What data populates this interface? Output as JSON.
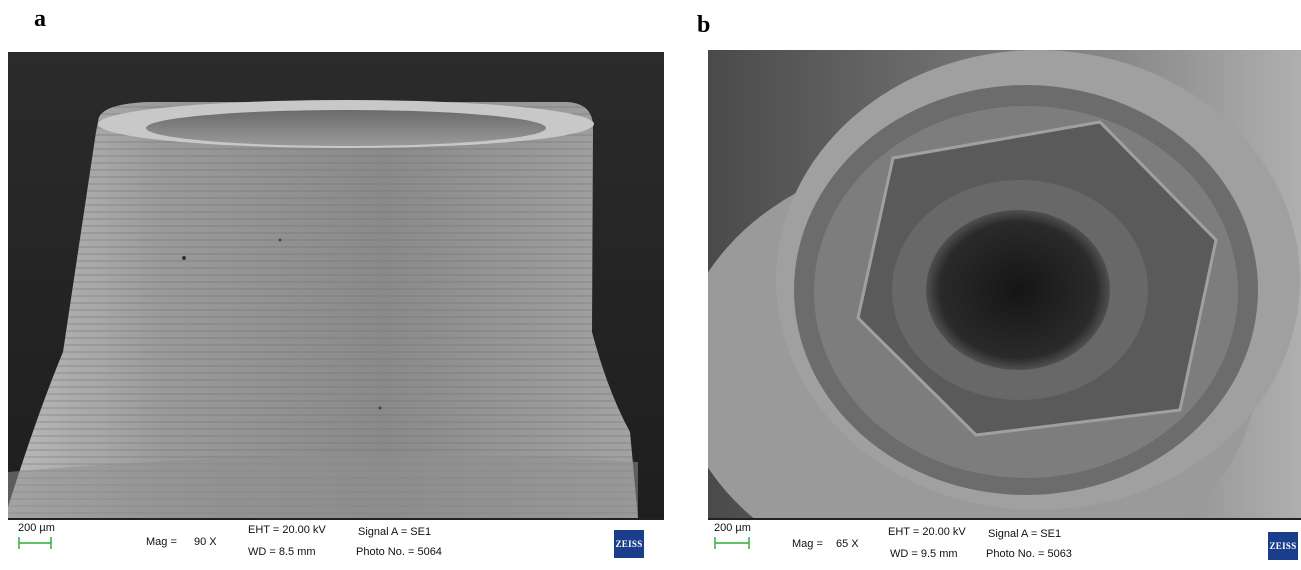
{
  "panels": [
    {
      "label": "a",
      "scale": "200 µm",
      "mag_label": "Mag =",
      "mag_value": "90 X",
      "eht": "EHT = 20.00 kV",
      "wd": "WD =  8.5 mm",
      "signal": "Signal A = SE1",
      "photo": "Photo No. = 5064",
      "logo": "ZEISS"
    },
    {
      "label": "b",
      "scale": "200 µm",
      "mag_label": "Mag =",
      "mag_value": "65 X",
      "eht": "EHT = 20.00 kV",
      "wd": "WD =  9.5 mm",
      "signal": "Signal A = SE1",
      "photo": "Photo No. = 5063",
      "logo": "ZEISS"
    }
  ],
  "colors": {
    "scalebar": "#2fae3b",
    "zeiss_logo": "#1a3e8c",
    "background_dark": "#2a2a2a"
  }
}
